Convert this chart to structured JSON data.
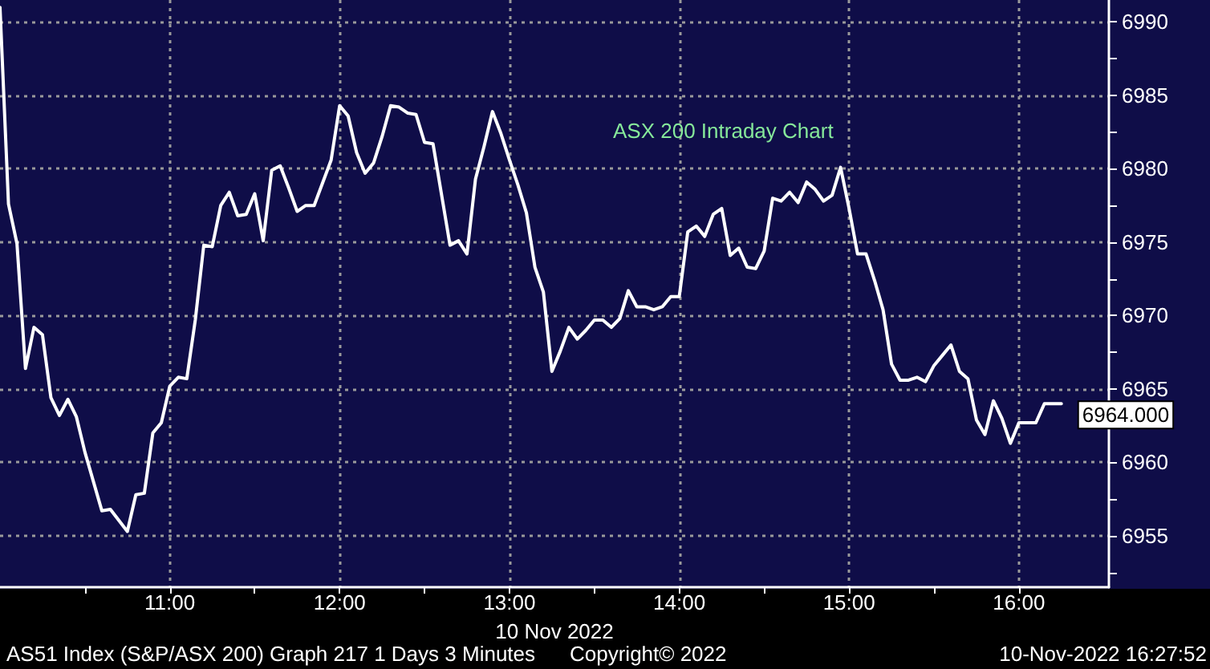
{
  "chart_data": {
    "type": "line",
    "title": "ASX 200 Intraday Chart",
    "xlabel": "10 Nov 2022",
    "annotations": [
      "AS51 Index (S&P/ASX 200) Graph 217 1 Days 3 Minutes",
      "Copyright© 2022",
      "10-Nov-2022 16:27:52"
    ],
    "x": [
      10,
      10.05,
      10.1,
      10.15,
      10.2,
      10.25,
      10.3,
      10.35,
      10.4,
      10.45,
      10.5,
      10.6,
      10.65,
      10.75,
      10.8,
      10.85,
      10.9,
      10.95,
      11,
      11.05,
      11.1,
      11.15,
      11.2,
      11.25,
      11.3,
      11.35,
      11.4,
      11.45,
      11.5,
      11.55,
      11.6,
      11.65,
      11.7,
      11.75,
      11.8,
      11.85,
      11.95,
      12,
      12.05,
      12.1,
      12.15,
      12.2,
      12.25,
      12.3,
      12.35,
      12.4,
      12.45,
      12.5,
      12.55,
      12.65,
      12.7,
      12.75,
      12.8,
      12.85,
      12.9,
      12.95,
      13,
      13.05,
      13.1,
      13.15,
      13.2,
      13.25,
      13.3,
      13.35,
      13.4,
      13.45,
      13.5,
      13.55,
      13.6,
      13.65,
      13.7,
      13.75,
      13.8,
      13.85,
      13.9,
      13.95,
      14,
      14.05,
      14.1,
      14.15,
      14.2,
      14.25,
      14.3,
      14.35,
      14.4,
      14.45,
      14.5,
      14.55,
      14.6,
      14.65,
      14.7,
      14.75,
      14.8,
      14.85,
      14.9,
      14.95,
      15,
      15.05,
      15.1,
      15.15,
      15.2,
      15.25,
      15.3,
      15.35,
      15.4,
      15.45,
      15.5,
      15.55,
      15.6,
      15.65,
      15.7,
      15.75,
      15.8,
      15.85,
      15.9,
      15.95,
      16,
      16.05,
      16.1,
      16.15,
      16.2,
      16.25
    ],
    "values": [
      6991,
      6977.6,
      6974.9,
      6966.4,
      6969.2,
      6968.7,
      6964.4,
      6963.2,
      6964.3,
      6963.1,
      6960.7,
      6956.7,
      6956.8,
      6955.3,
      6957.8,
      6957.9,
      6962.0,
      6962.7,
      6965.2,
      6965.8,
      6965.7,
      6969.7,
      6974.8,
      6974.7,
      6977.5,
      6978.4,
      6976.8,
      6976.9,
      6978.3,
      6975.1,
      6979.9,
      6980.2,
      6978.7,
      6977.1,
      6977.5,
      6977.5,
      6980.6,
      6984.3,
      6983.6,
      6981.1,
      6979.7,
      6980.4,
      6982.2,
      6984.3,
      6984.2,
      6983.8,
      6983.7,
      6981.8,
      6981.7,
      6974.8,
      6975.1,
      6974.2,
      6979.3,
      6981.5,
      6983.9,
      6982.4,
      6980.6,
      6978.9,
      6977.0,
      6973.3,
      6971.6,
      6966.2,
      6967.6,
      6969.2,
      6968.4,
      6969.0,
      6969.7,
      6969.7,
      6969.2,
      6969.8,
      6971.7,
      6970.6,
      6970.6,
      6970.4,
      6970.6,
      6971.3,
      6971.3,
      6975.7,
      6976.1,
      6975.4,
      6976.9,
      6977.3,
      6974.1,
      6974.6,
      6973.3,
      6973.2,
      6974.4,
      6978.0,
      6977.8,
      6978.4,
      6977.7,
      6979.1,
      6978.6,
      6977.8,
      6978.2,
      6980.1,
      6977.3,
      6974.2,
      6974.2,
      6972.4,
      6970.4,
      6966.7,
      6965.6,
      6965.6,
      6965.8,
      6965.5,
      6966.6,
      6967.3,
      6968.0,
      6966.2,
      6965.7,
      6962.9,
      6961.9,
      6964.2,
      6963.0,
      6961.3,
      6962.7,
      6962.7,
      6962.7,
      6964,
      6964,
      6964
    ],
    "value_labels": [
      null,
      null,
      null,
      null,
      null,
      null,
      null,
      null,
      null,
      null,
      null,
      null,
      null,
      null,
      null,
      null,
      null,
      null,
      null,
      null,
      null,
      null,
      null,
      null,
      null,
      null,
      null,
      null,
      null,
      null,
      null,
      null,
      null,
      null,
      null,
      null,
      null,
      null,
      null,
      null,
      null,
      null,
      null,
      null,
      null,
      null,
      null,
      null,
      null,
      null,
      null,
      null,
      null,
      null,
      null,
      null,
      null,
      null,
      null,
      null,
      null,
      null,
      null,
      null,
      null,
      null,
      null,
      null,
      null,
      null,
      null,
      null,
      null,
      null,
      null,
      null,
      null,
      null,
      null,
      null,
      null,
      null,
      null,
      null,
      null,
      null,
      null,
      null,
      null,
      null,
      null,
      null,
      null,
      null,
      null,
      null,
      null,
      null,
      null,
      null,
      null,
      null,
      null,
      null,
      null,
      null,
      null,
      null,
      null,
      null,
      null,
      null,
      null,
      null,
      null,
      null,
      null,
      null,
      null,
      null,
      null,
      "6964.000"
    ],
    "color": "#ffffff",
    "marker": "none",
    "line_style": "solid",
    "grid": true,
    "xlim": [
      10,
      16.53
    ],
    "xticks": [
      {
        "value": 10.5,
        "label": null
      },
      {
        "value": 11,
        "label": "11:00"
      },
      {
        "value": 11.5,
        "label": null
      },
      {
        "value": 12,
        "label": "12:00"
      },
      {
        "value": 12.5,
        "label": null
      },
      {
        "value": 13,
        "label": "13:00"
      },
      {
        "value": 13.5,
        "label": null
      },
      {
        "value": 14,
        "label": "14:00"
      },
      {
        "value": 14.5,
        "label": null
      },
      {
        "value": 15,
        "label": "15:00"
      },
      {
        "value": 15.5,
        "label": null
      },
      {
        "value": 16,
        "label": "16:00"
      }
    ],
    "ylim": [
      6951.5,
      6991.5
    ],
    "yticks": [
      {
        "value": 6952.5,
        "label": null
      },
      6955,
      {
        "value": 6957.5,
        "label": null
      },
      6960,
      {
        "value": 6962.5,
        "label": null
      },
      6965,
      {
        "value": 6967.5,
        "label": null
      },
      6970,
      {
        "value": 6972.5,
        "label": null
      },
      6975,
      {
        "value": 6977.5,
        "label": null
      },
      6980,
      {
        "value": 6982.5,
        "label": null
      },
      6985,
      {
        "value": 6987.5,
        "label": null
      },
      6990
    ]
  }
}
